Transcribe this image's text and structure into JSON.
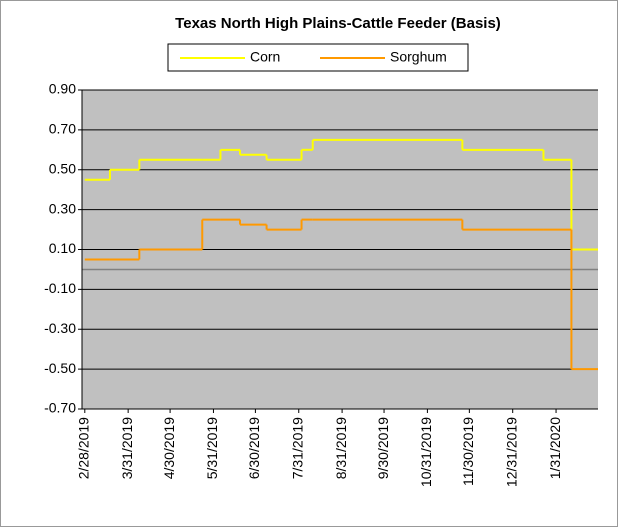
{
  "chart_data": {
    "type": "line",
    "title": "Texas North High Plains-Cattle Feeder (Basis)",
    "x": [
      "2019-02-28",
      "2019-03-18",
      "2019-04-08",
      "2019-05-23",
      "2019-06-05",
      "2019-06-19",
      "2019-07-08",
      "2019-08-02",
      "2019-08-10",
      "2019-11-25",
      "2020-01-22",
      "2020-02-11",
      "2020-03-01"
    ],
    "series": [
      {
        "name": "Corn",
        "color": "#ffff00",
        "values": [
          0.45,
          0.5,
          0.55,
          0.55,
          0.6,
          0.575,
          0.55,
          0.6,
          0.65,
          0.6,
          0.55,
          0.1,
          0.1
        ]
      },
      {
        "name": "Sorghum",
        "color": "#ff9900",
        "values": [
          0.05,
          0.05,
          0.1,
          0.25,
          0.25,
          0.225,
          0.2,
          0.25,
          0.25,
          0.2,
          0.2,
          -0.5,
          -0.5
        ]
      }
    ],
    "step": true,
    "xlim": [
      "2019-02-26",
      "2020-03-01"
    ],
    "xticks": [
      {
        "value": "2019-02-28",
        "label": "2/28/2019"
      },
      {
        "value": "2019-03-31",
        "label": "3/31/2019"
      },
      {
        "value": "2019-04-30",
        "label": "4/30/2019"
      },
      {
        "value": "2019-05-31",
        "label": "5/31/2019"
      },
      {
        "value": "2019-06-30",
        "label": "6/30/2019"
      },
      {
        "value": "2019-07-31",
        "label": "7/31/2019"
      },
      {
        "value": "2019-08-31",
        "label": "8/31/2019"
      },
      {
        "value": "2019-09-30",
        "label": "9/30/2019"
      },
      {
        "value": "2019-10-31",
        "label": "10/31/2019"
      },
      {
        "value": "2019-11-30",
        "label": "11/30/2019"
      },
      {
        "value": "2019-12-31",
        "label": "12/31/2019"
      },
      {
        "value": "2020-01-31",
        "label": "1/31/2020"
      }
    ],
    "ylim": [
      -0.7,
      0.9
    ],
    "yticks": [
      {
        "value": 0.9,
        "label": "0.90"
      },
      {
        "value": 0.7,
        "label": "0.70"
      },
      {
        "value": 0.5,
        "label": "0.50"
      },
      {
        "value": 0.3,
        "label": "0.30"
      },
      {
        "value": 0.1,
        "label": "0.10"
      },
      {
        "value": -0.1,
        "label": "-0.10"
      },
      {
        "value": -0.3,
        "label": "-0.30"
      },
      {
        "value": -0.5,
        "label": "-0.50"
      },
      {
        "value": -0.7,
        "label": "-0.70"
      }
    ],
    "grid": true,
    "legend": "top"
  }
}
